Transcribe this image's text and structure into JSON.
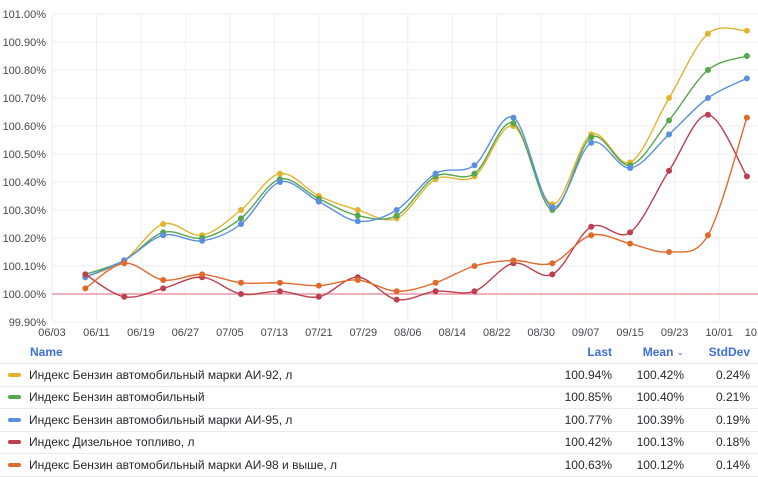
{
  "chart_data": {
    "type": "line",
    "title": "",
    "xlabel": "",
    "ylabel": "",
    "grid": true,
    "legend_position": "bottom-table",
    "y_axis": {
      "ylim": [
        99.9,
        101.0
      ],
      "tick_values": [
        99.9,
        100.0,
        100.1,
        100.2,
        100.3,
        100.4,
        100.5,
        100.6,
        100.7,
        100.8,
        100.9,
        101.0
      ],
      "tick_labels": [
        "99.90%",
        "100.00%",
        "100.10%",
        "100.20%",
        "100.30%",
        "100.40%",
        "100.50%",
        "100.60%",
        "100.70%",
        "100.80%",
        "100.90%",
        "101.00%"
      ]
    },
    "x_axis": {
      "domain_days": [
        0,
        127
      ],
      "ticks": [
        {
          "label": "06/03",
          "day": 0
        },
        {
          "label": "06/11",
          "day": 8
        },
        {
          "label": "06/19",
          "day": 16
        },
        {
          "label": "06/27",
          "day": 24
        },
        {
          "label": "07/05",
          "day": 32
        },
        {
          "label": "07/13",
          "day": 40
        },
        {
          "label": "07/21",
          "day": 48
        },
        {
          "label": "07/29",
          "day": 56
        },
        {
          "label": "08/06",
          "day": 64
        },
        {
          "label": "08/14",
          "day": 72
        },
        {
          "label": "08/22",
          "day": 80
        },
        {
          "label": "08/30",
          "day": 88
        },
        {
          "label": "09/07",
          "day": 96
        },
        {
          "label": "09/15",
          "day": 104
        },
        {
          "label": "09/23",
          "day": 112
        },
        {
          "label": "10/01",
          "day": 120
        },
        {
          "label": "10",
          "day": 128,
          "clipped": true
        }
      ]
    },
    "threshold": {
      "value": 100.0,
      "color": "rgba(224,47,68,0.35)"
    },
    "x": [
      "06/09",
      "06/16",
      "06/23",
      "06/30",
      "07/07",
      "07/14",
      "07/21",
      "07/28",
      "08/04",
      "08/11",
      "08/18",
      "08/25",
      "09/01",
      "09/08",
      "09/15",
      "09/22",
      "09/29",
      "10/06"
    ],
    "x_day_offsets": [
      6,
      13,
      20,
      27,
      34,
      41,
      48,
      55,
      62,
      69,
      76,
      83,
      90,
      97,
      104,
      111,
      118,
      125
    ],
    "series": [
      {
        "name": "Индекс Бензин автомобильный марки АИ-92, л",
        "color": "#E2B32E",
        "values": [
          100.06,
          100.12,
          100.25,
          100.21,
          100.3,
          100.43,
          100.35,
          100.3,
          100.27,
          100.41,
          100.42,
          100.6,
          100.32,
          100.57,
          100.47,
          100.7,
          100.93,
          100.94
        ]
      },
      {
        "name": "Индекс Бензин автомобильный",
        "color": "#56A64B",
        "values": [
          100.07,
          100.12,
          100.22,
          100.2,
          100.27,
          100.41,
          100.34,
          100.28,
          100.28,
          100.42,
          100.43,
          100.61,
          100.3,
          100.56,
          100.46,
          100.62,
          100.8,
          100.85
        ]
      },
      {
        "name": "Индекс Бензин автомобильный марки АИ-95, л",
        "color": "#5B8FE0",
        "values": [
          100.06,
          100.12,
          100.21,
          100.19,
          100.25,
          100.4,
          100.33,
          100.26,
          100.3,
          100.43,
          100.46,
          100.63,
          100.31,
          100.54,
          100.45,
          100.57,
          100.7,
          100.77
        ]
      },
      {
        "name": "Индекс Дизельное топливо, л",
        "color": "#BD3E4C",
        "values": [
          100.07,
          99.99,
          100.02,
          100.06,
          100.0,
          100.01,
          99.99,
          100.06,
          99.98,
          100.01,
          100.01,
          100.11,
          100.07,
          100.24,
          100.22,
          100.44,
          100.64,
          100.42
        ]
      },
      {
        "name": "Индекс Бензин автомобильный марки АИ-98 и выше, л",
        "color": "#E0692C",
        "values": [
          100.02,
          100.11,
          100.05,
          100.07,
          100.04,
          100.04,
          100.03,
          100.05,
          100.01,
          100.04,
          100.1,
          100.12,
          100.11,
          100.21,
          100.18,
          100.15,
          100.21,
          100.63
        ]
      }
    ]
  },
  "legend": {
    "columns": {
      "name": "Name",
      "last": "Last",
      "mean": "Mean",
      "stddev": "StdDev"
    },
    "sort_column": "mean",
    "sort_icon": "⌄",
    "rows": [
      {
        "name": "Индекс Бензин автомобильный марки АИ-92, л",
        "color": "#E2B32E",
        "last": "100.94%",
        "mean": "100.42%",
        "stddev": "0.24%"
      },
      {
        "name": "Индекс Бензин автомобильный",
        "color": "#56A64B",
        "last": "100.85%",
        "mean": "100.40%",
        "stddev": "0.21%"
      },
      {
        "name": "Индекс Бензин автомобильный марки АИ-95, л",
        "color": "#5B8FE0",
        "last": "100.77%",
        "mean": "100.39%",
        "stddev": "0.19%"
      },
      {
        "name": "Индекс Дизельное топливо, л",
        "color": "#BD3E4C",
        "last": "100.42%",
        "mean": "100.13%",
        "stddev": "0.18%"
      },
      {
        "name": "Индекс Бензин автомобильный марки АИ-98 и выше, л",
        "color": "#E0692C",
        "last": "100.63%",
        "mean": "100.12%",
        "stddev": "0.14%"
      }
    ]
  },
  "style": {
    "grid_color": "#edeef0",
    "axis_text_color": "#45484e",
    "header_color": "#3e6fd9"
  }
}
